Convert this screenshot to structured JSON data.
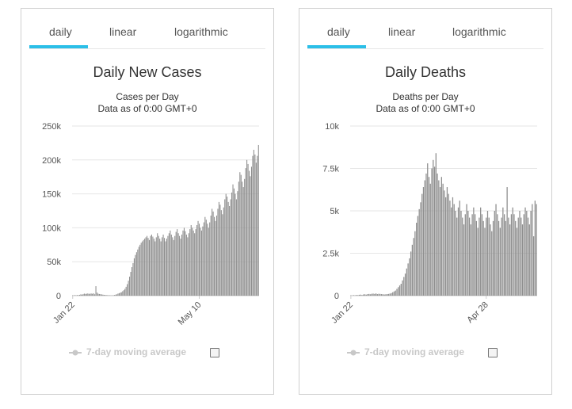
{
  "panels": [
    {
      "tabs": [
        "daily",
        "linear",
        "logarithmic"
      ],
      "active_tab": "daily",
      "title": "Daily New Cases",
      "subtitle": "Cases per Day",
      "note": "Data as of 0:00 GMT+0",
      "legend": {
        "label": "7-day moving average",
        "checked": false
      },
      "chart_data": {
        "type": "bar",
        "title": "Daily New Cases",
        "subtitle": "Cases per Day",
        "yticks": [
          "0",
          "50k",
          "100k",
          "150k",
          "200k",
          "250k"
        ],
        "ylim": [
          0,
          250000
        ],
        "xtick_labels": [
          "Jan 22",
          "May 10"
        ],
        "xtick_index": [
          0,
          109
        ],
        "grid": true,
        "series": [
          {
            "values": [
              600,
              300,
              800,
              500,
              900,
              700,
              1200,
              2000,
              1500,
              2200,
              3000,
              2500,
              2800,
              3200,
              2600,
              2900,
              3100,
              2700,
              3400,
              2000,
              14000,
              4500,
              2800,
              2400,
              2200,
              1800,
              1500,
              1200,
              1000,
              800,
              700,
              600,
              500,
              400,
              300,
              600,
              1000,
              1500,
              2000,
              3000,
              3500,
              4500,
              5000,
              6500,
              8000,
              10000,
              13000,
              17000,
              22000,
              28000,
              35000,
              42000,
              48000,
              55000,
              60000,
              64000,
              68000,
              72000,
              75000,
              78000,
              80000,
              82000,
              84000,
              86000,
              88000,
              85000,
              82000,
              88000,
              90000,
              87000,
              84000,
              80000,
              86000,
              92000,
              88000,
              84000,
              80000,
              86000,
              90000,
              85000,
              80000,
              84000,
              88000,
              92000,
              96000,
              90000,
              86000,
              82000,
              88000,
              94000,
              98000,
              92000,
              88000,
              84000,
              90000,
              96000,
              100000,
              95000,
              90000,
              86000,
              92000,
              98000,
              104000,
              100000,
              96000,
              92000,
              98000,
              104000,
              110000,
              106000,
              100000,
              96000,
              102000,
              108000,
              116000,
              112000,
              106000,
              100000,
              108000,
              118000,
              128000,
              124000,
              116000,
              110000,
              118000,
              128000,
              138000,
              134000,
              126000,
              120000,
              130000,
              142000,
              150000,
              146000,
              138000,
              132000,
              142000,
              152000,
              164000,
              158000,
              150000,
              142000,
              154000,
              168000,
              182000,
              178000,
              168000,
              160000,
              172000,
              188000,
              200000,
              194000,
              184000,
              176000,
              190000,
              206000,
              215000,
              208000,
              196000,
              206000,
              222000
            ]
          }
        ]
      }
    },
    {
      "tabs": [
        "daily",
        "linear",
        "logarithmic"
      ],
      "active_tab": "daily",
      "title": "Daily Deaths",
      "subtitle": "Deaths per Day",
      "note": "Data as of 0:00 GMT+0",
      "legend": {
        "label": "7-day moving average",
        "checked": false
      },
      "chart_data": {
        "type": "bar",
        "title": "Daily Deaths",
        "subtitle": "Deaths per Day",
        "yticks": [
          "0",
          "2.5k",
          "5k",
          "7.5k",
          "10k"
        ],
        "ylim": [
          0,
          10000
        ],
        "xtick_labels": [
          "Jan 22",
          "Apr 28"
        ],
        "xtick_index": [
          0,
          97
        ],
        "grid": true,
        "series": [
          {
            "values": [
              20,
              10,
              30,
              20,
              40,
              30,
              50,
              60,
              40,
              70,
              80,
              60,
              90,
              100,
              80,
              110,
              120,
              100,
              130,
              90,
              110,
              100,
              90,
              80,
              70,
              80,
              90,
              100,
              120,
              150,
              200,
              250,
              300,
              400,
              500,
              600,
              700,
              900,
              1100,
              1300,
              1600,
              1900,
              2200,
              2600,
              3000,
              3400,
              3800,
              4300,
              4700,
              5100,
              5500,
              6000,
              6400,
              6800,
              7200,
              7800,
              7000,
              6600,
              7500,
              8000,
              7600,
              8400,
              7200,
              6800,
              6400,
              7000,
              6600,
              6200,
              5800,
              6400,
              6000,
              5600,
              5200,
              5800,
              5400,
              5000,
              4600,
              5200,
              5600,
              5000,
              4600,
              4200,
              4800,
              5400,
              5000,
              4600,
              4200,
              4800,
              5200,
              4800,
              4400,
              4000,
              4600,
              5200,
              4800,
              4400,
              4000,
              4600,
              5000,
              4600,
              4200,
              3800,
              4400,
              5000,
              5400,
              4800,
              4400,
              4000,
              4600,
              5200,
              4800,
              4400,
              6400,
              4600,
              4200,
              4800,
              5200,
              4800,
              4400,
              4000,
              4600,
              5000,
              4600,
              4200,
              4800,
              5200,
              5000,
              4600,
              4200,
              5000,
              5400,
              3500,
              5600,
              5400
            ]
          }
        ]
      }
    }
  ]
}
